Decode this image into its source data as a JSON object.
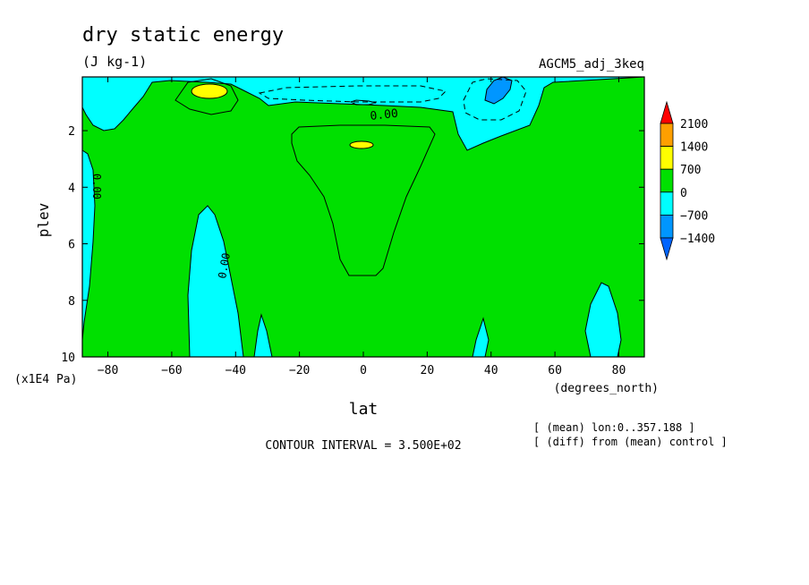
{
  "chart_data": {
    "type": "heatmap",
    "title": "dry static energy",
    "units": "(J kg-1)",
    "experiment": "AGCM5_adj_3keq",
    "xlabel": "lat",
    "xunits": "(degrees_north)",
    "ylabel": "plev",
    "yunits": "(x1E4 Pa)",
    "xlim": [
      -88,
      88
    ],
    "ylim": [
      10,
      0.1
    ],
    "x_ticks": [
      -80,
      -60,
      -40,
      -20,
      0,
      20,
      40,
      60,
      80
    ],
    "y_ticks": [
      2,
      4,
      6,
      8,
      10
    ],
    "colorbar": {
      "levels": [
        2100,
        1400,
        700,
        0,
        -700,
        -1400
      ],
      "labels": [
        "2100",
        "1400",
        "700",
        "0",
        "−700",
        "−1400"
      ],
      "colors": [
        "#ff0000",
        "#ff9f00",
        "#ffff00",
        "#00e000",
        "#00ffff",
        "#0096ff",
        "#0064ff"
      ]
    },
    "contour_labels": [
      "0.00",
      "0.00",
      "0.00"
    ],
    "contour_interval": "CONTOUR INTERVAL = 3.500E+02",
    "notes": [
      "[ (mean) lon:0..357.188 ]",
      "[ (diff) from (mean) control ]"
    ]
  }
}
